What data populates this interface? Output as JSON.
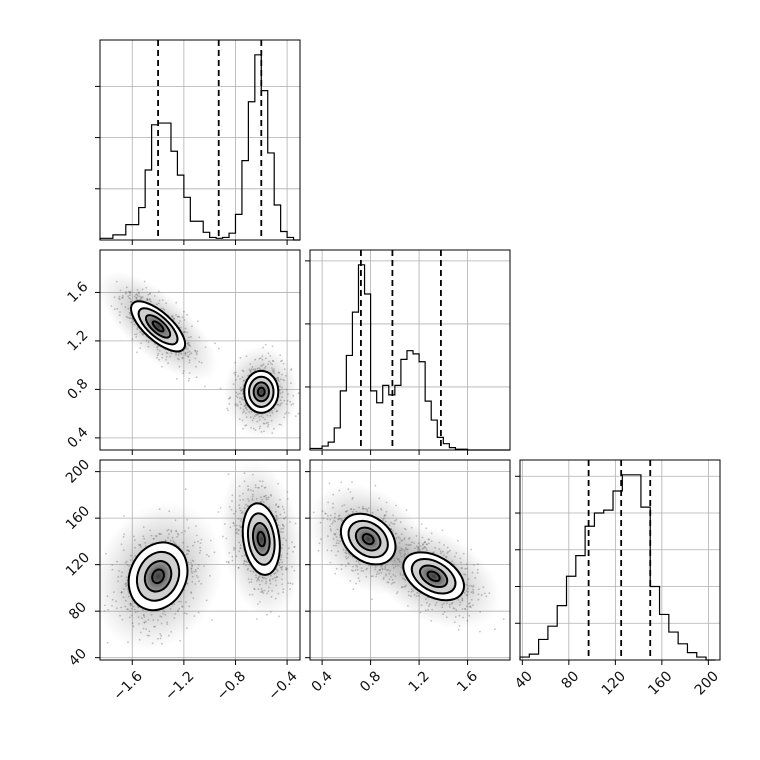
{
  "chart_data": {
    "type": "corner",
    "grid": true,
    "params": [
      {
        "range": [
          -1.85,
          -0.3
        ],
        "ticks": [
          -1.6,
          -1.2,
          -0.8,
          -0.4
        ],
        "tick_labels": [
          "−1.6",
          "−1.2",
          "−0.8",
          "−0.4"
        ],
        "quantiles": [
          -1.4,
          -0.93,
          -0.6
        ]
      },
      {
        "range": [
          0.3,
          1.95
        ],
        "ticks": [
          0.4,
          0.8,
          1.2,
          1.6
        ],
        "tick_labels": [
          "0.4",
          "0.8",
          "1.2",
          "1.6"
        ],
        "quantiles": [
          0.72,
          0.98,
          1.38
        ]
      },
      {
        "range": [
          38,
          210
        ],
        "ticks": [
          40,
          80,
          120,
          160,
          200
        ],
        "tick_labels": [
          "40",
          "80",
          "120",
          "160",
          "200"
        ],
        "quantiles": [
          97,
          125,
          150
        ]
      }
    ],
    "marginals": [
      {
        "bin_edges": [
          -1.85,
          -1.75,
          -1.65,
          -1.55,
          -1.5,
          -1.45,
          -1.4,
          -1.3,
          -1.25,
          -1.2,
          -1.15,
          -1.05,
          -1.0,
          -0.95,
          -0.9,
          -0.85,
          -0.8,
          -0.75,
          -0.7,
          -0.65,
          -0.6,
          -0.55,
          -0.5,
          -0.45,
          -0.4,
          -0.35,
          -0.3
        ],
        "counts": [
          2,
          6,
          18,
          38,
          82,
          135,
          137,
          104,
          76,
          50,
          22,
          9,
          3,
          2,
          3,
          8,
          30,
          93,
          162,
          217,
          175,
          102,
          41,
          10,
          3,
          0
        ]
      },
      {
        "bin_edges": [
          0.3,
          0.4,
          0.45,
          0.5,
          0.55,
          0.6,
          0.65,
          0.7,
          0.75,
          0.8,
          0.85,
          0.9,
          0.95,
          1.0,
          1.05,
          1.1,
          1.15,
          1.2,
          1.25,
          1.3,
          1.35,
          1.4,
          1.45,
          1.5,
          1.6,
          1.7,
          1.8,
          1.95
        ],
        "counts": [
          2,
          5,
          10,
          28,
          75,
          120,
          175,
          235,
          198,
          75,
          60,
          82,
          70,
          82,
          115,
          126,
          122,
          112,
          62,
          38,
          16,
          8,
          3,
          1,
          0,
          0,
          0
        ]
      },
      {
        "bin_edges": [
          38,
          46,
          54,
          62,
          70,
          78,
          86,
          94,
          102,
          110,
          118,
          126,
          134,
          142,
          150,
          158,
          166,
          174,
          182,
          190,
          198,
          206
        ],
        "counts": [
          2,
          4,
          14,
          23,
          37,
          57,
          71,
          91,
          100,
          102,
          115,
          126,
          126,
          104,
          50,
          31,
          19,
          11,
          5,
          2,
          0
        ]
      }
    ],
    "pairs": [
      {
        "x": 0,
        "y": 1,
        "modes": [
          {
            "cx": -1.4,
            "cy": 1.32
          },
          {
            "cx": -0.6,
            "cy": 0.78
          }
        ]
      },
      {
        "x": 0,
        "y": 2,
        "modes": [
          {
            "cx": -1.4,
            "cy": 110
          },
          {
            "cx": -0.6,
            "cy": 142
          }
        ]
      },
      {
        "x": 1,
        "y": 2,
        "modes": [
          {
            "cx": 0.78,
            "cy": 142
          },
          {
            "cx": 1.32,
            "cy": 110
          }
        ]
      }
    ]
  }
}
